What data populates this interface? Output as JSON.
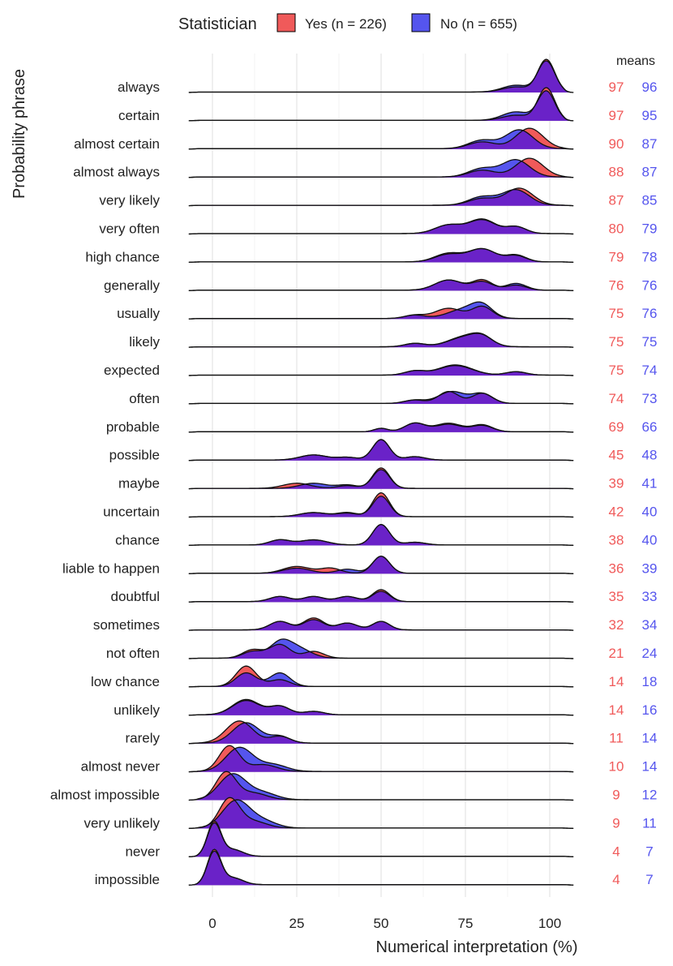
{
  "chart_data": {
    "type": "ridgeline",
    "xlabel": "Numerical interpretation (%)",
    "ylabel": "Probability phrase",
    "x_ticks": [
      0,
      25,
      50,
      75,
      100
    ],
    "xlim": [
      -7,
      107
    ],
    "legend": {
      "title": "Statistician",
      "placement": "top",
      "entries": [
        {
          "name": "Yes (n = 226)",
          "color": "#f05a5a"
        },
        {
          "name": "No (n = 655)",
          "color": "#5555ee"
        }
      ],
      "overlap_color": "#6a22c8"
    },
    "means_header": "means",
    "phrases": [
      {
        "label": "always",
        "yes_mean": 97,
        "no_mean": 96,
        "yes_peaks": [
          [
            99,
            0.95,
            2.5
          ],
          [
            90,
            0.15,
            4
          ]
        ],
        "no_peaks": [
          [
            99,
            0.9,
            2.5
          ],
          [
            90,
            0.2,
            4
          ]
        ]
      },
      {
        "label": "certain",
        "yes_mean": 97,
        "no_mean": 95,
        "yes_peaks": [
          [
            99,
            0.95,
            2.5
          ],
          [
            90,
            0.15,
            4
          ]
        ],
        "no_peaks": [
          [
            99,
            0.85,
            2.5
          ],
          [
            90,
            0.25,
            4
          ]
        ]
      },
      {
        "label": "almost certain",
        "yes_mean": 90,
        "no_mean": 87,
        "yes_peaks": [
          [
            94,
            0.6,
            4
          ],
          [
            80,
            0.2,
            4
          ]
        ],
        "no_peaks": [
          [
            91,
            0.55,
            4
          ],
          [
            80,
            0.25,
            4
          ]
        ]
      },
      {
        "label": "almost always",
        "yes_mean": 88,
        "no_mean": 87,
        "yes_peaks": [
          [
            94,
            0.55,
            4
          ],
          [
            80,
            0.2,
            4
          ]
        ],
        "no_peaks": [
          [
            90,
            0.5,
            4
          ],
          [
            80,
            0.25,
            4
          ]
        ]
      },
      {
        "label": "very likely",
        "yes_mean": 87,
        "no_mean": 85,
        "yes_peaks": [
          [
            91,
            0.5,
            4
          ],
          [
            80,
            0.2,
            4
          ]
        ],
        "no_peaks": [
          [
            90,
            0.45,
            4
          ],
          [
            80,
            0.25,
            4
          ]
        ]
      },
      {
        "label": "very often",
        "yes_mean": 80,
        "no_mean": 79,
        "yes_peaks": [
          [
            80,
            0.4,
            4
          ],
          [
            70,
            0.25,
            4
          ],
          [
            90,
            0.2,
            3
          ]
        ],
        "no_peaks": [
          [
            80,
            0.42,
            4
          ],
          [
            70,
            0.25,
            4
          ],
          [
            90,
            0.2,
            3
          ]
        ]
      },
      {
        "label": "high chance",
        "yes_mean": 79,
        "no_mean": 78,
        "yes_peaks": [
          [
            80,
            0.38,
            4
          ],
          [
            70,
            0.25,
            4
          ],
          [
            90,
            0.2,
            3
          ]
        ],
        "no_peaks": [
          [
            80,
            0.38,
            4
          ],
          [
            70,
            0.22,
            4
          ],
          [
            90,
            0.18,
            3
          ]
        ]
      },
      {
        "label": "generally",
        "yes_mean": 76,
        "no_mean": 76,
        "yes_peaks": [
          [
            70,
            0.3,
            4
          ],
          [
            80,
            0.3,
            3
          ],
          [
            90,
            0.15,
            3
          ]
        ],
        "no_peaks": [
          [
            70,
            0.3,
            4
          ],
          [
            80,
            0.25,
            3
          ],
          [
            90,
            0.2,
            3
          ]
        ]
      },
      {
        "label": "usually",
        "yes_mean": 75,
        "no_mean": 76,
        "yes_peaks": [
          [
            70,
            0.3,
            4
          ],
          [
            80,
            0.35,
            3
          ],
          [
            60,
            0.1,
            3
          ]
        ],
        "no_peaks": [
          [
            75,
            0.28,
            5
          ],
          [
            80,
            0.3,
            3
          ],
          [
            60,
            0.1,
            3
          ]
        ]
      },
      {
        "label": "likely",
        "yes_mean": 75,
        "no_mean": 75,
        "yes_peaks": [
          [
            75,
            0.3,
            5
          ],
          [
            80,
            0.2,
            3
          ],
          [
            60,
            0.1,
            3
          ]
        ],
        "no_peaks": [
          [
            75,
            0.28,
            5
          ],
          [
            80,
            0.2,
            3
          ],
          [
            60,
            0.1,
            3
          ]
        ]
      },
      {
        "label": "expected",
        "yes_mean": 75,
        "no_mean": 74,
        "yes_peaks": [
          [
            72,
            0.3,
            5
          ],
          [
            60,
            0.12,
            3
          ],
          [
            90,
            0.1,
            3
          ]
        ],
        "no_peaks": [
          [
            72,
            0.28,
            5
          ],
          [
            60,
            0.12,
            3
          ],
          [
            90,
            0.1,
            3
          ]
        ]
      },
      {
        "label": "often",
        "yes_mean": 74,
        "no_mean": 73,
        "yes_peaks": [
          [
            70,
            0.35,
            3
          ],
          [
            80,
            0.3,
            3
          ],
          [
            60,
            0.1,
            3
          ]
        ],
        "no_peaks": [
          [
            71,
            0.35,
            4
          ],
          [
            80,
            0.28,
            3
          ],
          [
            60,
            0.1,
            3
          ]
        ]
      },
      {
        "label": "probable",
        "yes_mean": 69,
        "no_mean": 66,
        "yes_peaks": [
          [
            60,
            0.25,
            3
          ],
          [
            70,
            0.25,
            4
          ],
          [
            80,
            0.2,
            3
          ],
          [
            50,
            0.1,
            2
          ]
        ],
        "no_peaks": [
          [
            60,
            0.25,
            3
          ],
          [
            70,
            0.22,
            4
          ],
          [
            80,
            0.18,
            3
          ],
          [
            50,
            0.1,
            2
          ]
        ]
      },
      {
        "label": "possible",
        "yes_mean": 45,
        "no_mean": 48,
        "yes_peaks": [
          [
            50,
            0.6,
            2.5
          ],
          [
            30,
            0.15,
            4
          ],
          [
            60,
            0.1,
            3
          ],
          [
            40,
            0.08,
            3
          ]
        ],
        "no_peaks": [
          [
            50,
            0.6,
            2.5
          ],
          [
            30,
            0.15,
            4
          ],
          [
            60,
            0.1,
            3
          ],
          [
            40,
            0.08,
            3
          ]
        ]
      },
      {
        "label": "maybe",
        "yes_mean": 39,
        "no_mean": 41,
        "yes_peaks": [
          [
            50,
            0.6,
            2.5
          ],
          [
            25,
            0.15,
            4
          ],
          [
            40,
            0.08,
            3
          ]
        ],
        "no_peaks": [
          [
            50,
            0.55,
            2.5
          ],
          [
            30,
            0.15,
            4
          ],
          [
            40,
            0.1,
            3
          ]
        ]
      },
      {
        "label": "uncertain",
        "yes_mean": 42,
        "no_mean": 40,
        "yes_peaks": [
          [
            50,
            0.7,
            2.5
          ],
          [
            30,
            0.12,
            4
          ],
          [
            40,
            0.1,
            3
          ]
        ],
        "no_peaks": [
          [
            50,
            0.6,
            2.5
          ],
          [
            30,
            0.12,
            4
          ],
          [
            40,
            0.12,
            3
          ]
        ]
      },
      {
        "label": "chance",
        "yes_mean": 38,
        "no_mean": 40,
        "yes_peaks": [
          [
            50,
            0.6,
            2.5
          ],
          [
            20,
            0.15,
            3
          ],
          [
            30,
            0.15,
            4
          ],
          [
            60,
            0.08,
            3
          ]
        ],
        "no_peaks": [
          [
            50,
            0.6,
            2.5
          ],
          [
            20,
            0.15,
            3
          ],
          [
            30,
            0.15,
            4
          ],
          [
            60,
            0.08,
            3
          ]
        ]
      },
      {
        "label": "liable to happen",
        "yes_mean": 36,
        "no_mean": 39,
        "yes_peaks": [
          [
            50,
            0.5,
            2.5
          ],
          [
            25,
            0.2,
            4
          ],
          [
            35,
            0.15,
            3
          ]
        ],
        "no_peaks": [
          [
            50,
            0.5,
            2.5
          ],
          [
            25,
            0.15,
            4
          ],
          [
            40,
            0.12,
            3
          ]
        ]
      },
      {
        "label": "doubtful",
        "yes_mean": 35,
        "no_mean": 33,
        "yes_peaks": [
          [
            50,
            0.35,
            2.5
          ],
          [
            20,
            0.15,
            3
          ],
          [
            30,
            0.15,
            3
          ],
          [
            40,
            0.15,
            3
          ]
        ],
        "no_peaks": [
          [
            50,
            0.3,
            2.5
          ],
          [
            20,
            0.15,
            3
          ],
          [
            30,
            0.15,
            3
          ],
          [
            40,
            0.15,
            3
          ]
        ]
      },
      {
        "label": "sometimes",
        "yes_mean": 32,
        "no_mean": 34,
        "yes_peaks": [
          [
            30,
            0.35,
            3
          ],
          [
            20,
            0.25,
            3
          ],
          [
            40,
            0.2,
            3
          ],
          [
            50,
            0.25,
            2.5
          ]
        ],
        "no_peaks": [
          [
            30,
            0.3,
            3
          ],
          [
            20,
            0.25,
            3
          ],
          [
            40,
            0.2,
            3
          ],
          [
            50,
            0.25,
            2.5
          ]
        ]
      },
      {
        "label": "not often",
        "yes_mean": 21,
        "no_mean": 24,
        "yes_peaks": [
          [
            20,
            0.4,
            3
          ],
          [
            12,
            0.25,
            3
          ],
          [
            30,
            0.2,
            3
          ]
        ],
        "no_peaks": [
          [
            20,
            0.4,
            3
          ],
          [
            25,
            0.3,
            4
          ],
          [
            12,
            0.2,
            3
          ]
        ]
      },
      {
        "label": "low chance",
        "yes_mean": 14,
        "no_mean": 18,
        "yes_peaks": [
          [
            10,
            0.6,
            3
          ],
          [
            20,
            0.2,
            3
          ]
        ],
        "no_peaks": [
          [
            10,
            0.4,
            3
          ],
          [
            20,
            0.4,
            3
          ]
        ]
      },
      {
        "label": "unlikely",
        "yes_mean": 14,
        "no_mean": 16,
        "yes_peaks": [
          [
            10,
            0.45,
            4
          ],
          [
            20,
            0.25,
            3
          ],
          [
            30,
            0.1,
            3
          ]
        ],
        "no_peaks": [
          [
            10,
            0.42,
            4
          ],
          [
            20,
            0.25,
            3
          ],
          [
            30,
            0.1,
            3
          ]
        ]
      },
      {
        "label": "rarely",
        "yes_mean": 11,
        "no_mean": 14,
        "yes_peaks": [
          [
            8,
            0.65,
            4
          ],
          [
            20,
            0.2,
            3
          ]
        ],
        "no_peaks": [
          [
            10,
            0.6,
            4
          ],
          [
            20,
            0.2,
            3
          ]
        ]
      },
      {
        "label": "almost never",
        "yes_mean": 10,
        "no_mean": 14,
        "yes_peaks": [
          [
            5,
            0.75,
            3
          ],
          [
            15,
            0.2,
            4
          ]
        ],
        "no_peaks": [
          [
            8,
            0.7,
            4
          ],
          [
            18,
            0.2,
            4
          ]
        ]
      },
      {
        "label": "almost impossible",
        "yes_mean": 9,
        "no_mean": 12,
        "yes_peaks": [
          [
            4,
            0.8,
            3
          ],
          [
            12,
            0.2,
            4
          ]
        ],
        "no_peaks": [
          [
            6,
            0.75,
            4
          ],
          [
            15,
            0.2,
            4
          ]
        ]
      },
      {
        "label": "very unlikely",
        "yes_mean": 9,
        "no_mean": 11,
        "yes_peaks": [
          [
            5,
            0.85,
            3
          ],
          [
            12,
            0.2,
            4
          ]
        ],
        "no_peaks": [
          [
            7,
            0.8,
            4
          ],
          [
            15,
            0.2,
            4
          ]
        ]
      },
      {
        "label": "never",
        "yes_mean": 4,
        "no_mean": 7,
        "yes_peaks": [
          [
            0.5,
            1.0,
            2
          ],
          [
            6,
            0.2,
            3
          ]
        ],
        "no_peaks": [
          [
            0.5,
            0.95,
            2
          ],
          [
            6,
            0.2,
            3
          ]
        ]
      },
      {
        "label": "impossible",
        "yes_mean": 4,
        "no_mean": 7,
        "yes_peaks": [
          [
            0.5,
            1.0,
            2
          ],
          [
            6,
            0.2,
            3
          ]
        ],
        "no_peaks": [
          [
            0.5,
            0.95,
            2
          ],
          [
            6,
            0.2,
            3
          ]
        ]
      }
    ]
  }
}
